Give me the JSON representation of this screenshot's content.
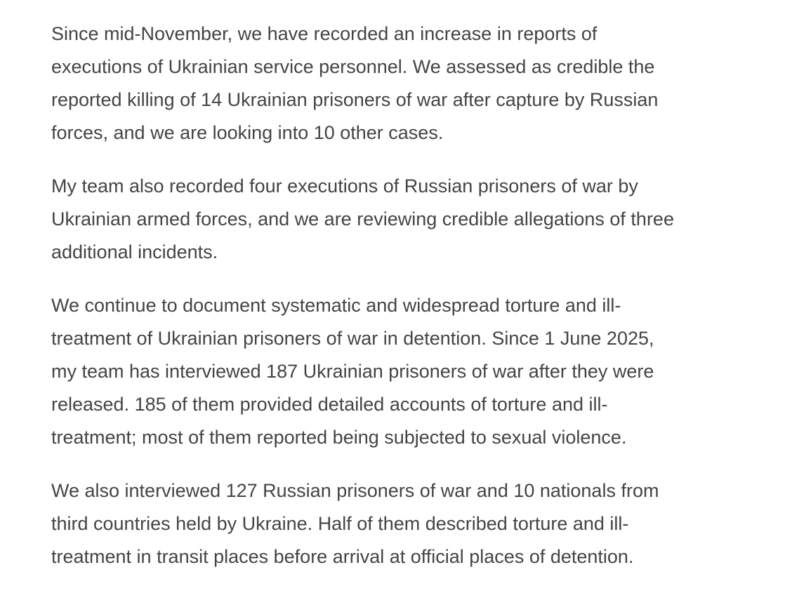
{
  "paragraphs": [
    {
      "lines": [
        "Since mid-November, we have recorded an increase in reports of",
        "executions of Ukrainian service personnel. We assessed as credible the",
        "reported killing of 14 Ukrainian prisoners of war after capture by Russian",
        "forces, and we are looking into 10 other cases."
      ]
    },
    {
      "lines": [
        "My team also recorded four executions of Russian prisoners of war by",
        "Ukrainian armed forces, and we are reviewing credible allegations of three",
        "additional incidents."
      ]
    },
    {
      "lines": [
        "We continue to document systematic and widespread torture and ill-",
        "treatment of Ukrainian prisoners of war in detention. Since 1 June 2025,",
        "my team has interviewed 187 Ukrainian prisoners of war after they were",
        "released. 185 of them provided detailed accounts of torture and ill-",
        "treatment; most of them reported being subjected to sexual violence."
      ]
    },
    {
      "lines": [
        "We also interviewed 127 Russian prisoners of war and 10 nationals from",
        "third countries held by Ukraine. Half of them described torture and ill-",
        "treatment in transit places before arrival at official places of detention."
      ]
    }
  ]
}
